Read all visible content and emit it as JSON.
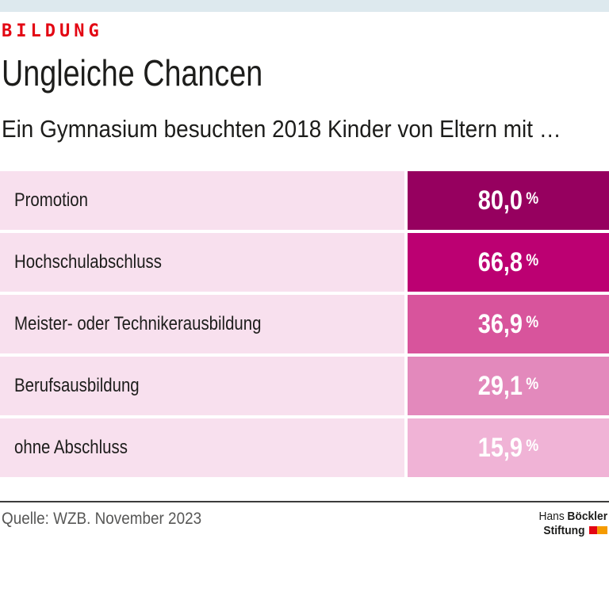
{
  "page": {
    "kicker": "BILDUNG",
    "title": "Ungleiche Chancen",
    "subtitle": "Ein Gymnasium besuchten 2018 Kinder von Eltern mit …",
    "source": "Quelle: WZB. November 2023",
    "logo": {
      "line1_regular": "Hans",
      "line1_bold": "Böckler",
      "line2_bold": "Stiftung"
    }
  },
  "colors": {
    "topbar": "#dde9ee",
    "kicker_red": "#e30613",
    "row_background": "#f8e0ee",
    "text": "#1d1d1b",
    "source_text": "#575756",
    "footer_line": "#3c3c3b",
    "logo_red": "#e30613",
    "logo_orange": "#f59b00"
  },
  "chart_data": {
    "type": "bar",
    "orientation": "horizontal",
    "bar_style": "equal-width value cells, color intensity encodes value",
    "title": "Ungleiche Chancen",
    "kicker": "BILDUNG",
    "subtitle": "Ein Gymnasium besuchten 2018 Kinder von Eltern mit …",
    "year": 2018,
    "unit": "%",
    "categories": [
      "Promotion",
      "Hochschulabschluss",
      "Meister- oder Technikerausbildung",
      "Berufsausbildung",
      "ohne Abschluss"
    ],
    "values": [
      80.0,
      66.8,
      36.9,
      29.1,
      15.9
    ],
    "value_labels": [
      "80,0",
      "66,8",
      "36,9",
      "29,1",
      "15,9"
    ],
    "bar_colors": [
      "#96005f",
      "#bc0072",
      "#d8549c",
      "#e389bc",
      "#f0b3d6"
    ],
    "source": "Quelle: WZB. November 2023"
  }
}
